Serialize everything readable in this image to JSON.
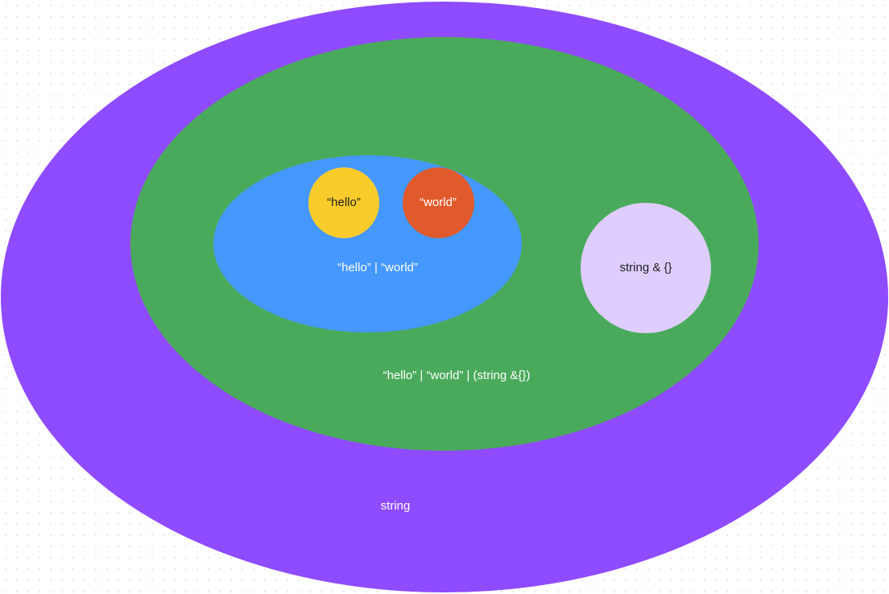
{
  "colors": {
    "string_set": "#8f4bff",
    "union_with_string_set": "#4aaa5b",
    "literal_union_set": "#4598ff",
    "hello_literal": "#f9cc2c",
    "world_literal": "#e05a2b",
    "string_intersection_set": "#dfcdff"
  },
  "sets": {
    "string": "string",
    "union_with_string": "“hello” | “world” | (string &{})",
    "literal_union": "“hello” | “world”",
    "hello": "“hello”",
    "world": "“world”",
    "string_intersection": "string & {}"
  }
}
